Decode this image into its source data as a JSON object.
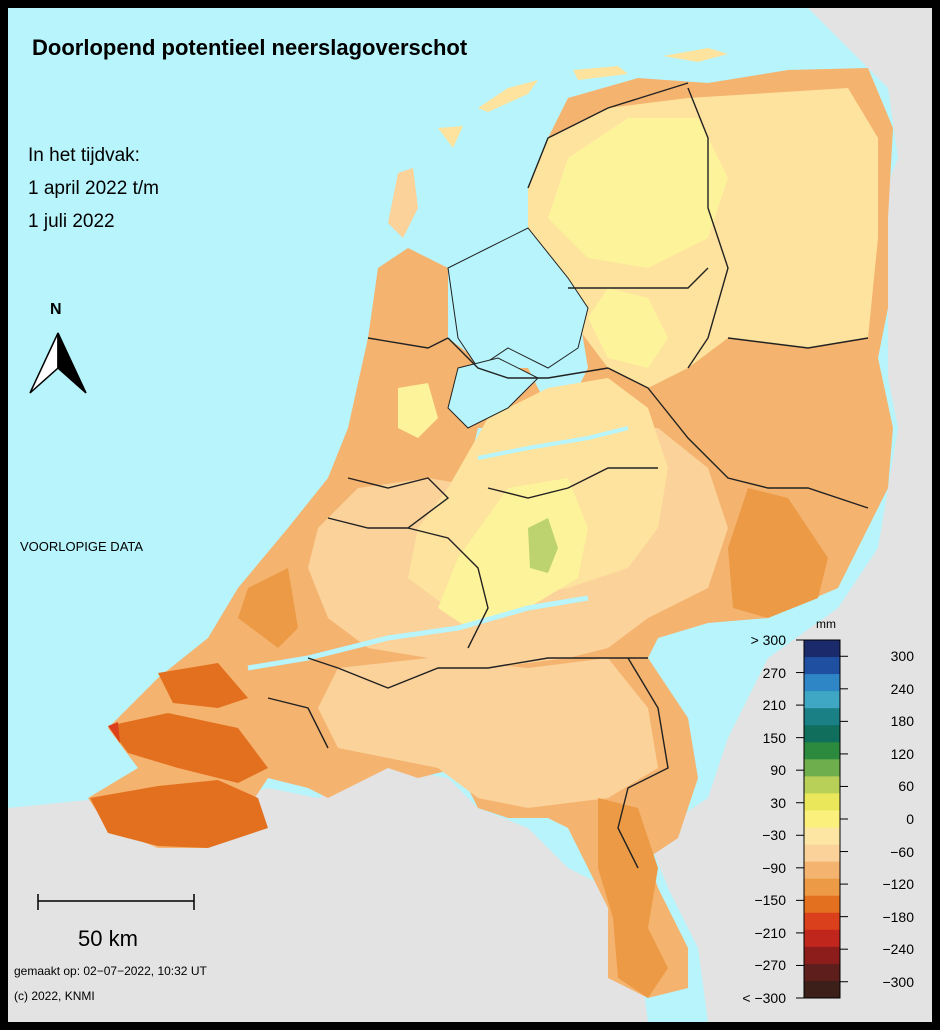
{
  "title": "Doorlopend potentieel neerslagoverschot",
  "period": {
    "label": "In het tijdvak:",
    "start": "1 april 2022 t/m",
    "end": "1 juli 2022"
  },
  "preliminary_label": "VOORLOPIGE DATA",
  "north_arrow": {
    "label": "N",
    "icon": "north-arrow-icon"
  },
  "scale_bar": {
    "label": "50 km"
  },
  "made_on": "gemaakt op: 02−07−2022, 10:32 UT",
  "copyright": "(c) 2022, KNMI",
  "colors": {
    "sea": "#b7f4fb",
    "foreign_land": "#e3e3e3",
    "region_minus_30_0": "#fdf39b",
    "region_minus_60_minus_30": "#fde39e",
    "region_minus_90_minus_60": "#fbd29a",
    "region_minus_120_minus_90": "#f4b36f",
    "region_minus_150_minus_120": "#ec9a45",
    "region_minus_180_minus_150": "#e3701f",
    "region_minus_210_minus_180": "#d9401b",
    "region_0_30": "#bcd36f",
    "province_borders": "#222222"
  },
  "legend": {
    "unit": "mm",
    "left_labels": [
      "> 300",
      "270",
      "210",
      "150",
      "90",
      "30",
      "−30",
      "−90",
      "−150",
      "−210",
      "−270",
      "< −300"
    ],
    "right_labels": [
      "300",
      "240",
      "180",
      "120",
      "60",
      "0",
      "−60",
      "−120",
      "−180",
      "−240",
      "−300"
    ],
    "swatches": [
      "#1b2a6b",
      "#1f4fa0",
      "#2f86c7",
      "#3fa6c4",
      "#1b7f86",
      "#0f6f5c",
      "#2c8a3f",
      "#6fae4c",
      "#b8cf58",
      "#eae85a",
      "#fcf07c",
      "#fde6a4",
      "#fbd29a",
      "#f4b36f",
      "#ec9a45",
      "#e3701f",
      "#d9401b",
      "#c1261d",
      "#8d1d1b",
      "#5e1f1c",
      "#3d1f1a"
    ]
  }
}
